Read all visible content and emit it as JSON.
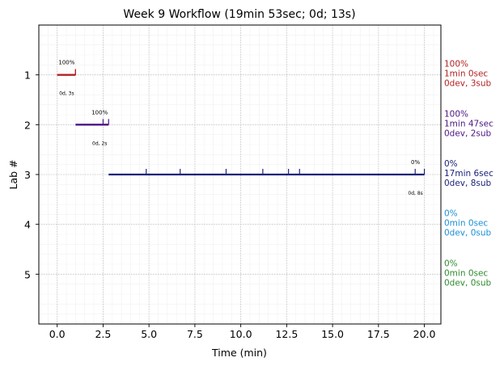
{
  "chart_data": {
    "type": "timeline",
    "title": "Week 9 Workflow (19min 53sec; 0d; 13s)",
    "xlabel": "Time (min)",
    "ylabel": "Lab #",
    "xlim": [
      -1.0,
      20.9
    ],
    "ylim": [
      6.0,
      0.0
    ],
    "xticks": [
      0.0,
      2.5,
      5.0,
      7.5,
      10.0,
      12.5,
      15.0,
      17.5,
      20.0
    ],
    "xtick_labels": [
      "0.0",
      "2.5",
      "5.0",
      "7.5",
      "10.0",
      "12.5",
      "15.0",
      "17.5",
      "20.0"
    ],
    "yticks": [
      1,
      2,
      3,
      4,
      5
    ],
    "ytick_labels": [
      "1",
      "2",
      "3",
      "4",
      "5"
    ],
    "grid": true,
    "series": [
      {
        "lab": 1,
        "color": "#b22222",
        "start": 0.0,
        "end": 1.0,
        "submissions": [
          1.0,
          1.0,
          1.0
        ],
        "percent_label": "100%",
        "timing_label": "0d, 3s",
        "side_lines": [
          "100%",
          "1min 0sec",
          "0dev, 3sub"
        ]
      },
      {
        "lab": 2,
        "color": "#4b1582",
        "start": 1.0,
        "end": 2.8,
        "submissions": [
          2.5,
          2.8
        ],
        "percent_label": "100%",
        "timing_label": "0d, 2s",
        "side_lines": [
          "100%",
          "1min 47sec",
          "0dev, 2sub"
        ]
      },
      {
        "lab": 3,
        "color": "#1b237a",
        "start": 2.8,
        "end": 20.0,
        "submissions": [
          4.85,
          6.7,
          9.2,
          11.2,
          12.6,
          13.2,
          19.5,
          20.0
        ],
        "percent_label": "0%",
        "timing_label": "0d, 8s",
        "side_lines": [
          "0%",
          "17min 6sec",
          "0dev, 8sub"
        ]
      },
      {
        "lab": 4,
        "color": "#1a8fd6",
        "start": null,
        "end": null,
        "submissions": [],
        "percent_label": "",
        "timing_label": "",
        "side_lines": [
          "0%",
          "0min 0sec",
          "0dev, 0sub"
        ]
      },
      {
        "lab": 5,
        "color": "#2e8b2e",
        "start": null,
        "end": null,
        "submissions": [],
        "percent_label": "",
        "timing_label": "",
        "side_lines": [
          "0%",
          "0min 0sec",
          "0dev, 0sub"
        ]
      }
    ]
  }
}
